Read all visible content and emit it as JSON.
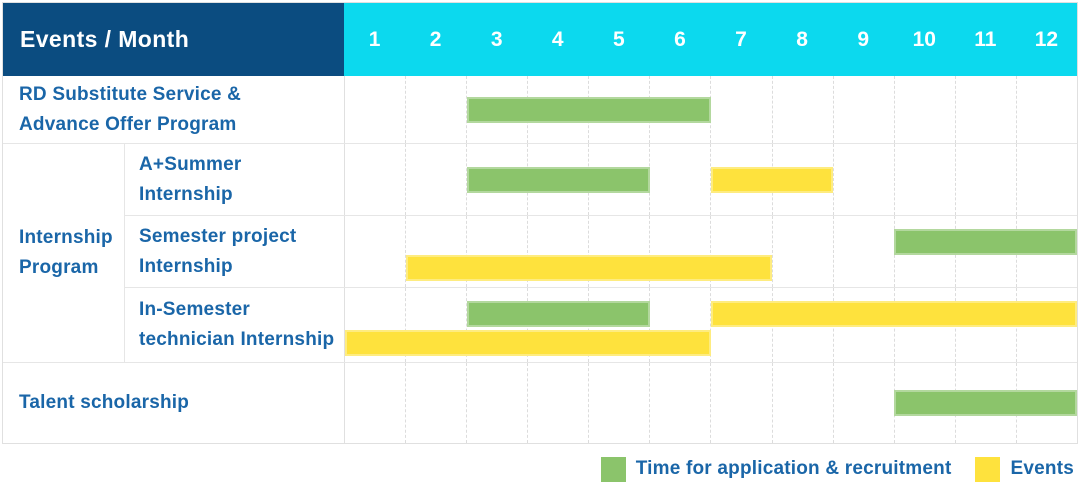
{
  "chart_data": {
    "type": "bar",
    "subtype": "gantt",
    "title": "Events / Month",
    "x_axis": {
      "label": "Month",
      "ticks": [
        "1",
        "2",
        "3",
        "4",
        "5",
        "6",
        "7",
        "8",
        "9",
        "10",
        "11",
        "12"
      ],
      "range": [
        1,
        12
      ],
      "grid": "vertical-dashed"
    },
    "legend_position": "bottom-right",
    "series_legend": [
      {
        "name": "Time for application & recruitment",
        "color": "#8bc46b"
      },
      {
        "name": "Events",
        "color": "#fee23d"
      }
    ],
    "rows": [
      {
        "label": "RD Substitute Service & Advance Offer Program",
        "group": null,
        "spans": [
          {
            "series": "Time for application & recruitment",
            "start_month": 3,
            "end_month": 6
          }
        ]
      },
      {
        "label": "A+Summer Internship",
        "group": "Internship Program",
        "spans": [
          {
            "series": "Time for application & recruitment",
            "start_month": 3,
            "end_month": 5
          },
          {
            "series": "Events",
            "start_month": 7,
            "end_month": 8
          }
        ]
      },
      {
        "label": "Semester project Internship",
        "group": "Internship Program",
        "spans": [
          {
            "series": "Time for application & recruitment",
            "start_month": 10,
            "end_month": 12
          },
          {
            "series": "Events",
            "start_month": 2,
            "end_month": 7
          }
        ]
      },
      {
        "label": "In-Semester technician Internship",
        "group": "Internship Program",
        "spans": [
          {
            "series": "Time for application & recruitment",
            "start_month": 3,
            "end_month": 5
          },
          {
            "series": "Events",
            "start_month": 7,
            "end_month": 12
          },
          {
            "series": "Events",
            "start_month": 1,
            "end_month": 6
          }
        ]
      },
      {
        "label": "Talent scholarship",
        "group": null,
        "spans": [
          {
            "series": "Time for application & recruitment",
            "start_month": 10,
            "end_month": 12
          }
        ]
      }
    ]
  },
  "header": {
    "title": "Events / Month",
    "months": [
      "1",
      "2",
      "3",
      "4",
      "5",
      "6",
      "7",
      "8",
      "9",
      "10",
      "11",
      "12"
    ]
  },
  "rows": {
    "rd": {
      "line1": "RD Substitute Service &",
      "line2": "Advance Offer Program",
      "bars": [
        {
          "color": "green",
          "start": 3,
          "end": 6,
          "lane": "center"
        }
      ]
    },
    "group_label": {
      "line1": "Internship",
      "line2": "Program"
    },
    "summer": {
      "line1": "A+Summer",
      "line2": "Internship",
      "bars": [
        {
          "color": "green",
          "start": 3,
          "end": 5,
          "lane": "center"
        },
        {
          "color": "yellow",
          "start": 7,
          "end": 8,
          "lane": "center"
        }
      ]
    },
    "semester": {
      "line1": "Semester project",
      "line2": "Internship",
      "bars": [
        {
          "color": "green",
          "start": 10,
          "end": 12,
          "lane": "top"
        },
        {
          "color": "yellow",
          "start": 2,
          "end": 7,
          "lane": "bottom"
        }
      ]
    },
    "insemester": {
      "line1": "In-Semester",
      "line2": "technician Internship",
      "bars": [
        {
          "color": "green",
          "start": 3,
          "end": 5,
          "lane": "top"
        },
        {
          "color": "yellow",
          "start": 7,
          "end": 12,
          "lane": "top"
        },
        {
          "color": "yellow",
          "start": 1,
          "end": 6,
          "lane": "bottom"
        }
      ]
    },
    "talent": {
      "line1": "Talent scholarship",
      "bars": [
        {
          "color": "green",
          "start": 10,
          "end": 12,
          "lane": "center"
        }
      ]
    }
  },
  "legend": {
    "items": [
      {
        "color": "green",
        "label": "Time for application & recruitment"
      },
      {
        "color": "yellow",
        "label": "Events"
      }
    ]
  },
  "colors": {
    "header_bg": "#0b4c80",
    "months_bg": "#0cd9ee",
    "green": "#8bc46b",
    "yellow": "#fee23d",
    "label_text": "#1a66a8"
  }
}
